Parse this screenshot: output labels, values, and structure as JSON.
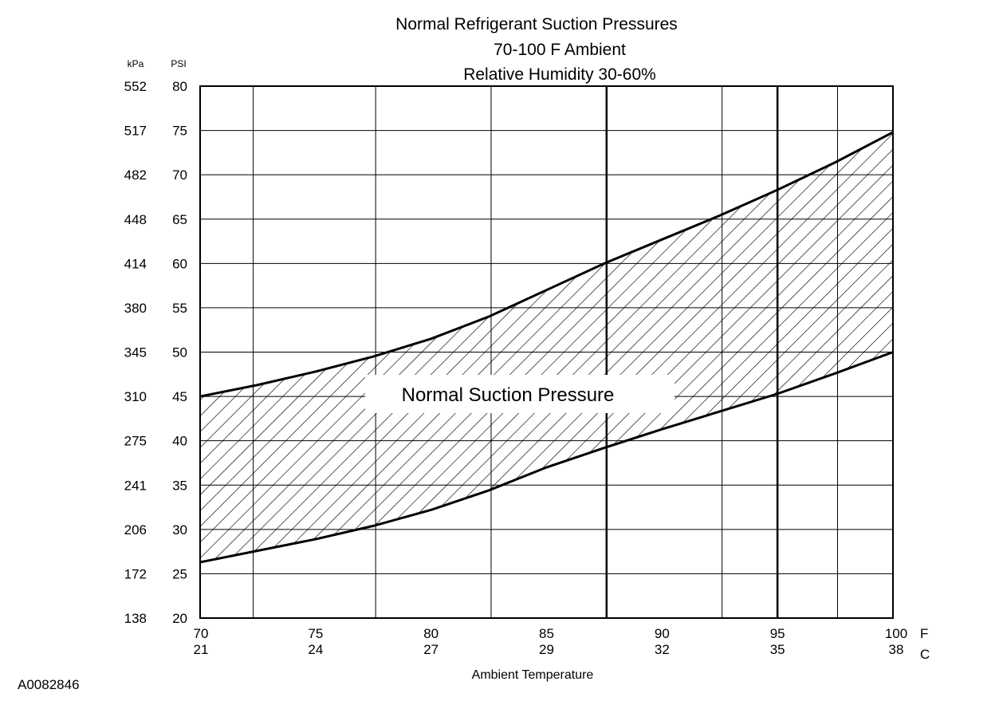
{
  "figure_id": "A0082846",
  "chart_data": {
    "type": "area",
    "title_lines": [
      "Normal Refrigerant Suction Pressures",
      "70-100 F Ambient",
      "Relative Humidity 30-60%"
    ],
    "xlabel": "Ambient Temperature",
    "x_unit_f": "F",
    "x_unit_c": "C",
    "y_unit_left": "kPa",
    "y_unit_right": "PSI",
    "xlim": [
      70,
      100
    ],
    "ylim": [
      20,
      80
    ],
    "x_ticks": [
      {
        "f": "70",
        "c": "21",
        "value": 70
      },
      {
        "f": "75",
        "c": "24",
        "value": 75
      },
      {
        "f": "80",
        "c": "27",
        "value": 80
      },
      {
        "f": "85",
        "c": "29",
        "value": 85
      },
      {
        "f": "90",
        "c": "32",
        "value": 90
      },
      {
        "f": "95",
        "c": "35",
        "value": 95
      },
      {
        "f": "100",
        "c": "38",
        "value": 100
      }
    ],
    "y_ticks": [
      {
        "psi": "20",
        "kpa": "138",
        "value": 20
      },
      {
        "psi": "25",
        "kpa": "172",
        "value": 25
      },
      {
        "psi": "30",
        "kpa": "206",
        "value": 30
      },
      {
        "psi": "35",
        "kpa": "241",
        "value": 35
      },
      {
        "psi": "40",
        "kpa": "275",
        "value": 40
      },
      {
        "psi": "45",
        "kpa": "310",
        "value": 45
      },
      {
        "psi": "50",
        "kpa": "345",
        "value": 50
      },
      {
        "psi": "55",
        "kpa": "380",
        "value": 55
      },
      {
        "psi": "60",
        "kpa": "414",
        "value": 60
      },
      {
        "psi": "65",
        "kpa": "448",
        "value": 65
      },
      {
        "psi": "70",
        "kpa": "482",
        "value": 70
      },
      {
        "psi": "75",
        "kpa": "517",
        "value": 75
      },
      {
        "psi": "80",
        "kpa": "552",
        "value": 80
      }
    ],
    "v_grid": [
      72.3,
      77.6,
      82.6,
      87.6,
      92.6,
      97.6
    ],
    "v_grid_heavy": [
      87.6,
      95
    ],
    "grid": true,
    "band_label": "Normal Suction Pressure",
    "series": [
      {
        "name": "upper",
        "x": [
          70,
          72.5,
          75,
          77.5,
          80,
          82.5,
          85,
          87.5,
          90,
          92.5,
          95,
          97.5,
          100
        ],
        "values": [
          45,
          46.3,
          47.8,
          49.5,
          51.5,
          54,
          57,
          60,
          62.7,
          65.4,
          68.3,
          71.4,
          74.8
        ]
      },
      {
        "name": "lower",
        "x": [
          70,
          72.5,
          75,
          77.5,
          80,
          82.5,
          85,
          87.5,
          90,
          92.5,
          95,
          97.5,
          100
        ],
        "values": [
          26.3,
          27.6,
          28.9,
          30.4,
          32.2,
          34.4,
          37,
          39.2,
          41.3,
          43.3,
          45.3,
          47.6,
          50
        ]
      }
    ]
  }
}
